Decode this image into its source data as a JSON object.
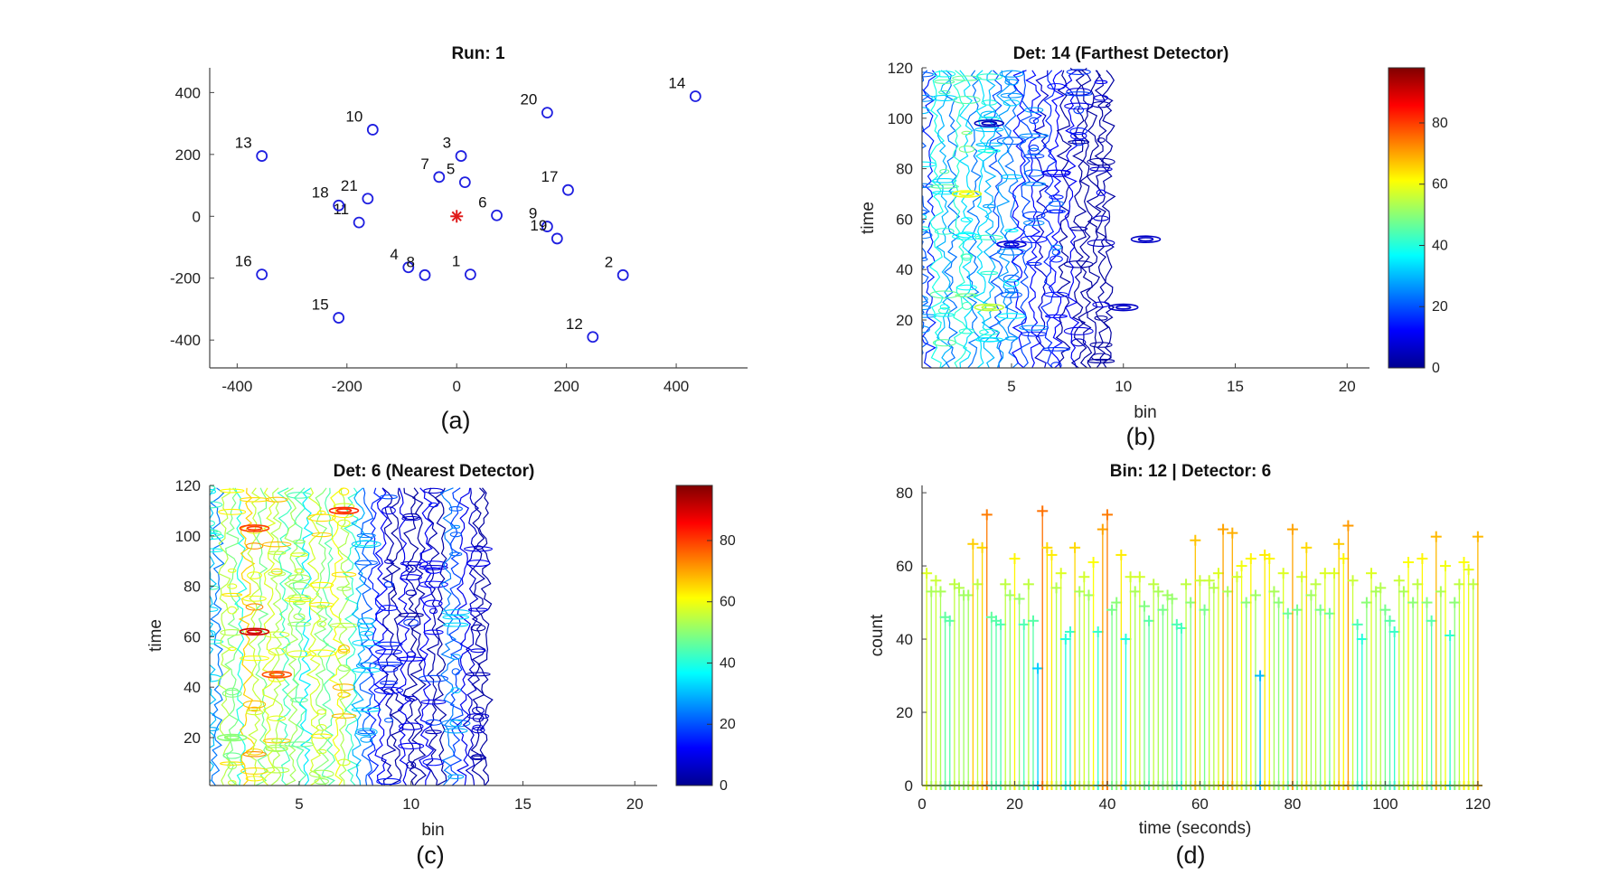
{
  "chart_data": [
    {
      "panel": "a",
      "caption": "(a)",
      "type": "scatter",
      "title": "Run: 1",
      "xlabel": "",
      "ylabel": "",
      "xlim": [
        -450,
        530
      ],
      "ylim": [
        -490,
        480
      ],
      "xticks": [
        "-400",
        "-200",
        "0",
        "200",
        "400"
      ],
      "yticks": [
        "-400",
        "-200",
        "0",
        "200",
        "400"
      ],
      "marker_color": "#1f1fe0",
      "source_color": "#e01a1a",
      "source": {
        "x": 0,
        "y": 0
      },
      "points": [
        {
          "label": "1",
          "x": 25,
          "y": -188
        },
        {
          "label": "2",
          "x": 303,
          "y": -190
        },
        {
          "label": "3",
          "x": 8,
          "y": 195
        },
        {
          "label": "4",
          "x": -88,
          "y": -165
        },
        {
          "label": "5",
          "x": 15,
          "y": 110
        },
        {
          "label": "6",
          "x": 73,
          "y": 3
        },
        {
          "label": "7",
          "x": -32,
          "y": 127
        },
        {
          "label": "8",
          "x": -58,
          "y": -190
        },
        {
          "label": "9",
          "x": 165,
          "y": -33
        },
        {
          "label": "10",
          "x": -153,
          "y": 280
        },
        {
          "label": "11",
          "x": -178,
          "y": -20
        },
        {
          "label": "12",
          "x": 248,
          "y": -390
        },
        {
          "label": "13",
          "x": -355,
          "y": 195
        },
        {
          "label": "14",
          "x": 435,
          "y": 388
        },
        {
          "label": "15",
          "x": -215,
          "y": -328
        },
        {
          "label": "16",
          "x": -355,
          "y": -188
        },
        {
          "label": "17",
          "x": 203,
          "y": 85
        },
        {
          "label": "18",
          "x": -215,
          "y": 35
        },
        {
          "label": "19",
          "x": 183,
          "y": -72
        },
        {
          "label": "20",
          "x": 165,
          "y": 335
        },
        {
          "label": "21",
          "x": -162,
          "y": 57
        }
      ]
    },
    {
      "panel": "b",
      "caption": "(b)",
      "type": "heatmap",
      "title": "Det: 14 (Farthest Detector)",
      "xlabel": "bin",
      "ylabel": "time",
      "xlim": [
        1,
        21
      ],
      "ylim": [
        1,
        120
      ],
      "xticks": [
        "5",
        "10",
        "15",
        "20"
      ],
      "yticks": [
        "20",
        "40",
        "60",
        "80",
        "100",
        "120"
      ],
      "colorbar_ticks": [
        "0",
        "20",
        "40",
        "60",
        "80"
      ],
      "colorbar_range": [
        0,
        98
      ],
      "colormap": [
        "#00008f",
        "#0000ff",
        "#0080ff",
        "#00ffff",
        "#80ff80",
        "#ffff00",
        "#ff8000",
        "#ff0000",
        "#800000"
      ],
      "bin_levels": [
        {
          "bin": 1,
          "level": 30
        },
        {
          "bin": 2,
          "level": 38
        },
        {
          "bin": 3,
          "level": 42
        },
        {
          "bin": 4,
          "level": 36
        },
        {
          "bin": 5,
          "level": 30
        },
        {
          "bin": 6,
          "level": 22
        },
        {
          "bin": 7,
          "level": 18
        },
        {
          "bin": 8,
          "level": 10
        },
        {
          "bin": 9,
          "level": 4
        }
      ],
      "hotspots": [
        {
          "time": 98,
          "bin": 4,
          "value": 5
        },
        {
          "time": 70,
          "bin": 3,
          "value": 60
        },
        {
          "time": 50,
          "bin": 5,
          "value": 8
        },
        {
          "time": 25,
          "bin": 4,
          "value": 55
        },
        {
          "time": 52,
          "bin": 11,
          "value": 6
        },
        {
          "time": 25,
          "bin": 10,
          "value": 6
        }
      ]
    },
    {
      "panel": "c",
      "caption": "(c)",
      "type": "heatmap",
      "title": "Det: 6 (Nearest Detector)",
      "xlabel": "bin",
      "ylabel": "time",
      "xlim": [
        1,
        21
      ],
      "ylim": [
        1,
        120
      ],
      "xticks": [
        "5",
        "10",
        "15",
        "20"
      ],
      "yticks": [
        "20",
        "40",
        "60",
        "80",
        "100",
        "120"
      ],
      "colorbar_ticks": [
        "0",
        "20",
        "40",
        "60",
        "80"
      ],
      "colorbar_range": [
        0,
        98
      ],
      "colormap": [
        "#00008f",
        "#0000ff",
        "#0080ff",
        "#00ffff",
        "#80ff80",
        "#ffff00",
        "#ff8000",
        "#ff0000",
        "#800000"
      ],
      "bin_levels": [
        {
          "bin": 1,
          "level": 38
        },
        {
          "bin": 2,
          "level": 55
        },
        {
          "bin": 3,
          "level": 66
        },
        {
          "bin": 4,
          "level": 60
        },
        {
          "bin": 5,
          "level": 52
        },
        {
          "bin": 6,
          "level": 58
        },
        {
          "bin": 7,
          "level": 60
        },
        {
          "bin": 8,
          "level": 30
        },
        {
          "bin": 9,
          "level": 14
        },
        {
          "bin": 10,
          "level": 10
        },
        {
          "bin": 11,
          "level": 12
        },
        {
          "bin": 12,
          "level": 26
        },
        {
          "bin": 13,
          "level": 4
        }
      ],
      "hotspots": [
        {
          "time": 62,
          "bin": 3,
          "value": 90
        },
        {
          "time": 103,
          "bin": 3,
          "value": 80
        },
        {
          "time": 110,
          "bin": 7,
          "value": 82
        },
        {
          "time": 45,
          "bin": 4,
          "value": 78
        },
        {
          "time": 20,
          "bin": 2,
          "value": 50
        }
      ]
    },
    {
      "panel": "d",
      "caption": "(d)",
      "type": "stem",
      "title": "Bin: 12 | Detector: 6",
      "xlabel": "time (seconds)",
      "ylabel": "count",
      "xlim": [
        0,
        121
      ],
      "ylim": [
        0,
        82
      ],
      "xticks": [
        "0",
        "20",
        "40",
        "60",
        "80",
        "100",
        "120"
      ],
      "yticks": [
        "0",
        "20",
        "40",
        "60",
        "80"
      ],
      "colorbar_range": [
        0,
        98
      ],
      "x": [
        1,
        2,
        3,
        4,
        5,
        6,
        7,
        8,
        9,
        10,
        11,
        12,
        13,
        14,
        15,
        16,
        17,
        18,
        19,
        20,
        21,
        22,
        23,
        24,
        25,
        26,
        27,
        28,
        29,
        30,
        31,
        32,
        33,
        34,
        35,
        36,
        37,
        38,
        39,
        40,
        41,
        42,
        43,
        44,
        45,
        46,
        47,
        48,
        49,
        50,
        51,
        52,
        53,
        54,
        55,
        56,
        57,
        58,
        59,
        60,
        61,
        62,
        63,
        64,
        65,
        66,
        67,
        68,
        69,
        70,
        71,
        72,
        73,
        74,
        75,
        76,
        77,
        78,
        79,
        80,
        81,
        82,
        83,
        84,
        85,
        86,
        87,
        88,
        89,
        90,
        91,
        92,
        93,
        94,
        95,
        96,
        97,
        98,
        99,
        100,
        101,
        102,
        103,
        104,
        105,
        106,
        107,
        108,
        109,
        110,
        111,
        112,
        113,
        114,
        115,
        116,
        117,
        118,
        119,
        120
      ],
      "values": [
        58,
        53,
        56,
        53,
        46,
        45,
        55,
        54,
        52,
        52,
        66,
        55,
        65,
        74,
        46,
        45,
        44,
        55,
        52,
        62,
        51,
        44,
        55,
        45,
        32,
        75,
        65,
        63,
        54,
        58,
        40,
        42,
        65,
        53,
        57,
        52,
        61,
        42,
        70,
        74,
        48,
        50,
        63,
        40,
        57,
        53,
        57,
        49,
        45,
        55,
        53,
        48,
        52,
        51,
        44,
        43,
        55,
        50,
        67,
        56,
        48,
        56,
        54,
        58,
        70,
        53,
        69,
        57,
        60,
        50,
        62,
        52,
        30,
        63,
        62,
        53,
        50,
        58,
        47,
        70,
        48,
        57,
        65,
        52,
        55,
        48,
        58,
        47,
        58,
        66,
        62,
        71,
        56,
        44,
        40,
        50,
        58,
        53,
        54,
        48,
        45,
        42,
        56,
        53,
        61,
        50,
        55,
        62,
        50,
        45,
        68,
        53,
        60,
        41,
        50,
        55,
        61,
        59,
        55,
        68
      ]
    }
  ]
}
